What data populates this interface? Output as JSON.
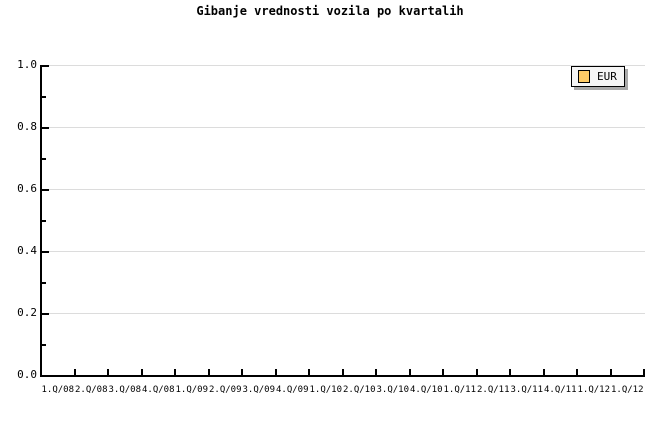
{
  "title": "Gibanje vrednosti vozila po kvartalih",
  "legend": {
    "label": "EUR",
    "swatch_color": "#FFCC66"
  },
  "axes": {
    "y_tick_labels": [
      "1.0",
      "0.8",
      "0.6",
      "0.4",
      "0.2",
      "0.0"
    ],
    "x_tick_labels": [
      "1.Q/08",
      "2.Q/08",
      "3.Q/08",
      "4.Q/08",
      "1.Q/09",
      "2.Q/09",
      "3.Q/09",
      "4.Q/09",
      "1.Q/10",
      "2.Q/10",
      "3.Q/10",
      "4.Q/10",
      "1.Q/11",
      "2.Q/11",
      "3.Q/11",
      "4.Q/11",
      "1.Q/12",
      "1.Q/12"
    ]
  },
  "colors": {
    "background": "#FFFFFF",
    "axis": "#000000",
    "grid": "#DCDCDC",
    "text": "#000000",
    "legend_background": "#F5F5F5",
    "legend_shadow": "#A9A9A9",
    "series_eur": "#FFCC66"
  },
  "chart_data": {
    "type": "line",
    "title": "Gibanje vrednosti vozila po kvartalih",
    "categories": [
      "1.Q/08",
      "2.Q/08",
      "3.Q/08",
      "4.Q/08",
      "1.Q/09",
      "2.Q/09",
      "3.Q/09",
      "4.Q/09",
      "1.Q/10",
      "2.Q/10",
      "3.Q/10",
      "4.Q/10",
      "1.Q/11",
      "2.Q/11",
      "3.Q/11",
      "4.Q/11",
      "1.Q/12",
      "1.Q/12"
    ],
    "series": [
      {
        "name": "EUR",
        "color": "#FFCC66",
        "values": []
      }
    ],
    "xlabel": "",
    "ylabel": "",
    "ylim": [
      0.0,
      1.0
    ],
    "ytick_step": 0.2,
    "ytick_minor_step": 0.1,
    "grid": true,
    "legend_position": "top-right"
  }
}
